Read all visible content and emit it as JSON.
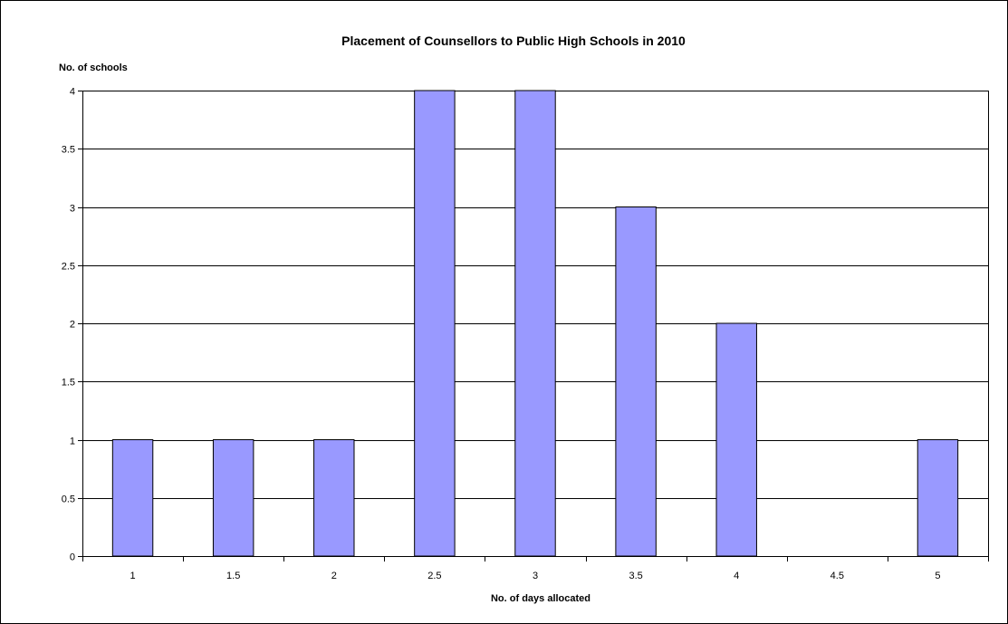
{
  "chart_data": {
    "type": "bar",
    "title": "Placement of Counsellors to Public High Schools in 2010",
    "xlabel": "No. of days allocated",
    "ylabel": "No. of schools",
    "categories": [
      "1",
      "1.5",
      "2",
      "2.5",
      "3",
      "3.5",
      "4",
      "4.5",
      "5"
    ],
    "values": [
      1,
      1,
      1,
      4,
      4,
      3,
      2,
      0,
      1
    ],
    "ylim": [
      0,
      4
    ],
    "yticks": [
      "0",
      "0.5",
      "1",
      "1.5",
      "2",
      "2.5",
      "3",
      "3.5",
      "4"
    ],
    "grid": true,
    "legend": "none",
    "colors": {
      "bar_fill": "#9999ff",
      "bar_stroke": "#000000",
      "grid": "#000000"
    }
  }
}
